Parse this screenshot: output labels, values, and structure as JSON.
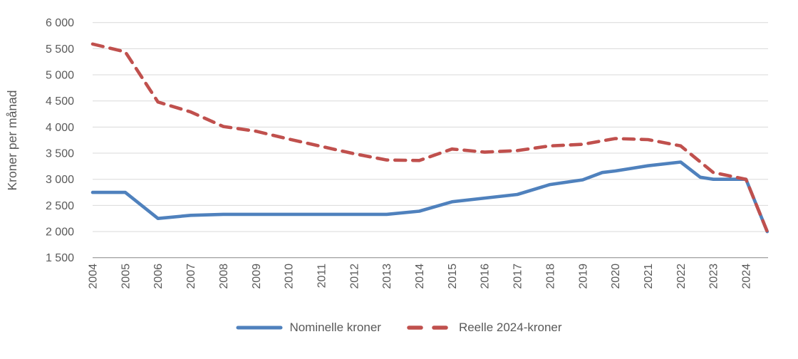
{
  "chart_data": {
    "type": "line",
    "title": "",
    "xlabel": "",
    "ylabel": "Kroner per månad",
    "ylim": [
      1500,
      6000
    ],
    "ytick_step": 500,
    "grid": "horizontal-only",
    "legend_position": "bottom-center",
    "ytick_labels": [
      "6 000",
      "5 500",
      "5 000",
      "4 500",
      "4 000",
      "3 500",
      "3 000",
      "2 500",
      "2 000",
      "1 500"
    ],
    "ytick_values": [
      6000,
      5500,
      5000,
      4500,
      4000,
      3500,
      3000,
      2500,
      2000,
      1500
    ],
    "xtick_labels": [
      "2004",
      "2005",
      "2006",
      "2007",
      "2008",
      "2009",
      "2010",
      "2011",
      "2012",
      "2013",
      "2014",
      "2015",
      "2016",
      "2017",
      "2018",
      "2019",
      "2020",
      "2021",
      "2022",
      "2023",
      "2024"
    ],
    "x_note": "last data point lies about two-thirds of a year past the 2024 tick",
    "series": [
      {
        "name": "Nominelle kroner",
        "style": "solid",
        "color": "#4F81BD",
        "points": [
          [
            2004,
            2750
          ],
          [
            2005,
            2750
          ],
          [
            2006,
            2250
          ],
          [
            2007,
            2310
          ],
          [
            2008,
            2330
          ],
          [
            2009,
            2330
          ],
          [
            2010,
            2330
          ],
          [
            2011,
            2330
          ],
          [
            2012,
            2330
          ],
          [
            2013,
            2330
          ],
          [
            2014,
            2390
          ],
          [
            2015,
            2570
          ],
          [
            2016,
            2640
          ],
          [
            2017,
            2710
          ],
          [
            2018,
            2900
          ],
          [
            2019,
            2990
          ],
          [
            2019.6,
            3130
          ],
          [
            2020,
            3160
          ],
          [
            2021,
            3260
          ],
          [
            2022,
            3330
          ],
          [
            2022.6,
            3040
          ],
          [
            2023,
            3000
          ],
          [
            2024,
            3000
          ],
          [
            2024.65,
            2000
          ]
        ]
      },
      {
        "name": "Reelle 2024-kroner",
        "style": "dashed",
        "color": "#C0504D",
        "points": [
          [
            2004,
            5590
          ],
          [
            2005,
            5440
          ],
          [
            2006,
            4480
          ],
          [
            2007,
            4290
          ],
          [
            2008,
            4010
          ],
          [
            2009,
            3920
          ],
          [
            2010,
            3770
          ],
          [
            2011,
            3630
          ],
          [
            2012,
            3490
          ],
          [
            2013,
            3370
          ],
          [
            2014,
            3360
          ],
          [
            2015,
            3580
          ],
          [
            2016,
            3520
          ],
          [
            2017,
            3550
          ],
          [
            2018,
            3640
          ],
          [
            2019,
            3670
          ],
          [
            2020,
            3780
          ],
          [
            2021,
            3760
          ],
          [
            2022,
            3640
          ],
          [
            2023,
            3130
          ],
          [
            2024,
            3000
          ],
          [
            2024.65,
            2000
          ]
        ]
      }
    ]
  },
  "colors": {
    "gridline": "#D9D9D9",
    "axis_line": "#A6A6A6",
    "tick_text": "#595959",
    "series_nominelle": "#4F81BD",
    "series_reelle": "#C0504D"
  }
}
